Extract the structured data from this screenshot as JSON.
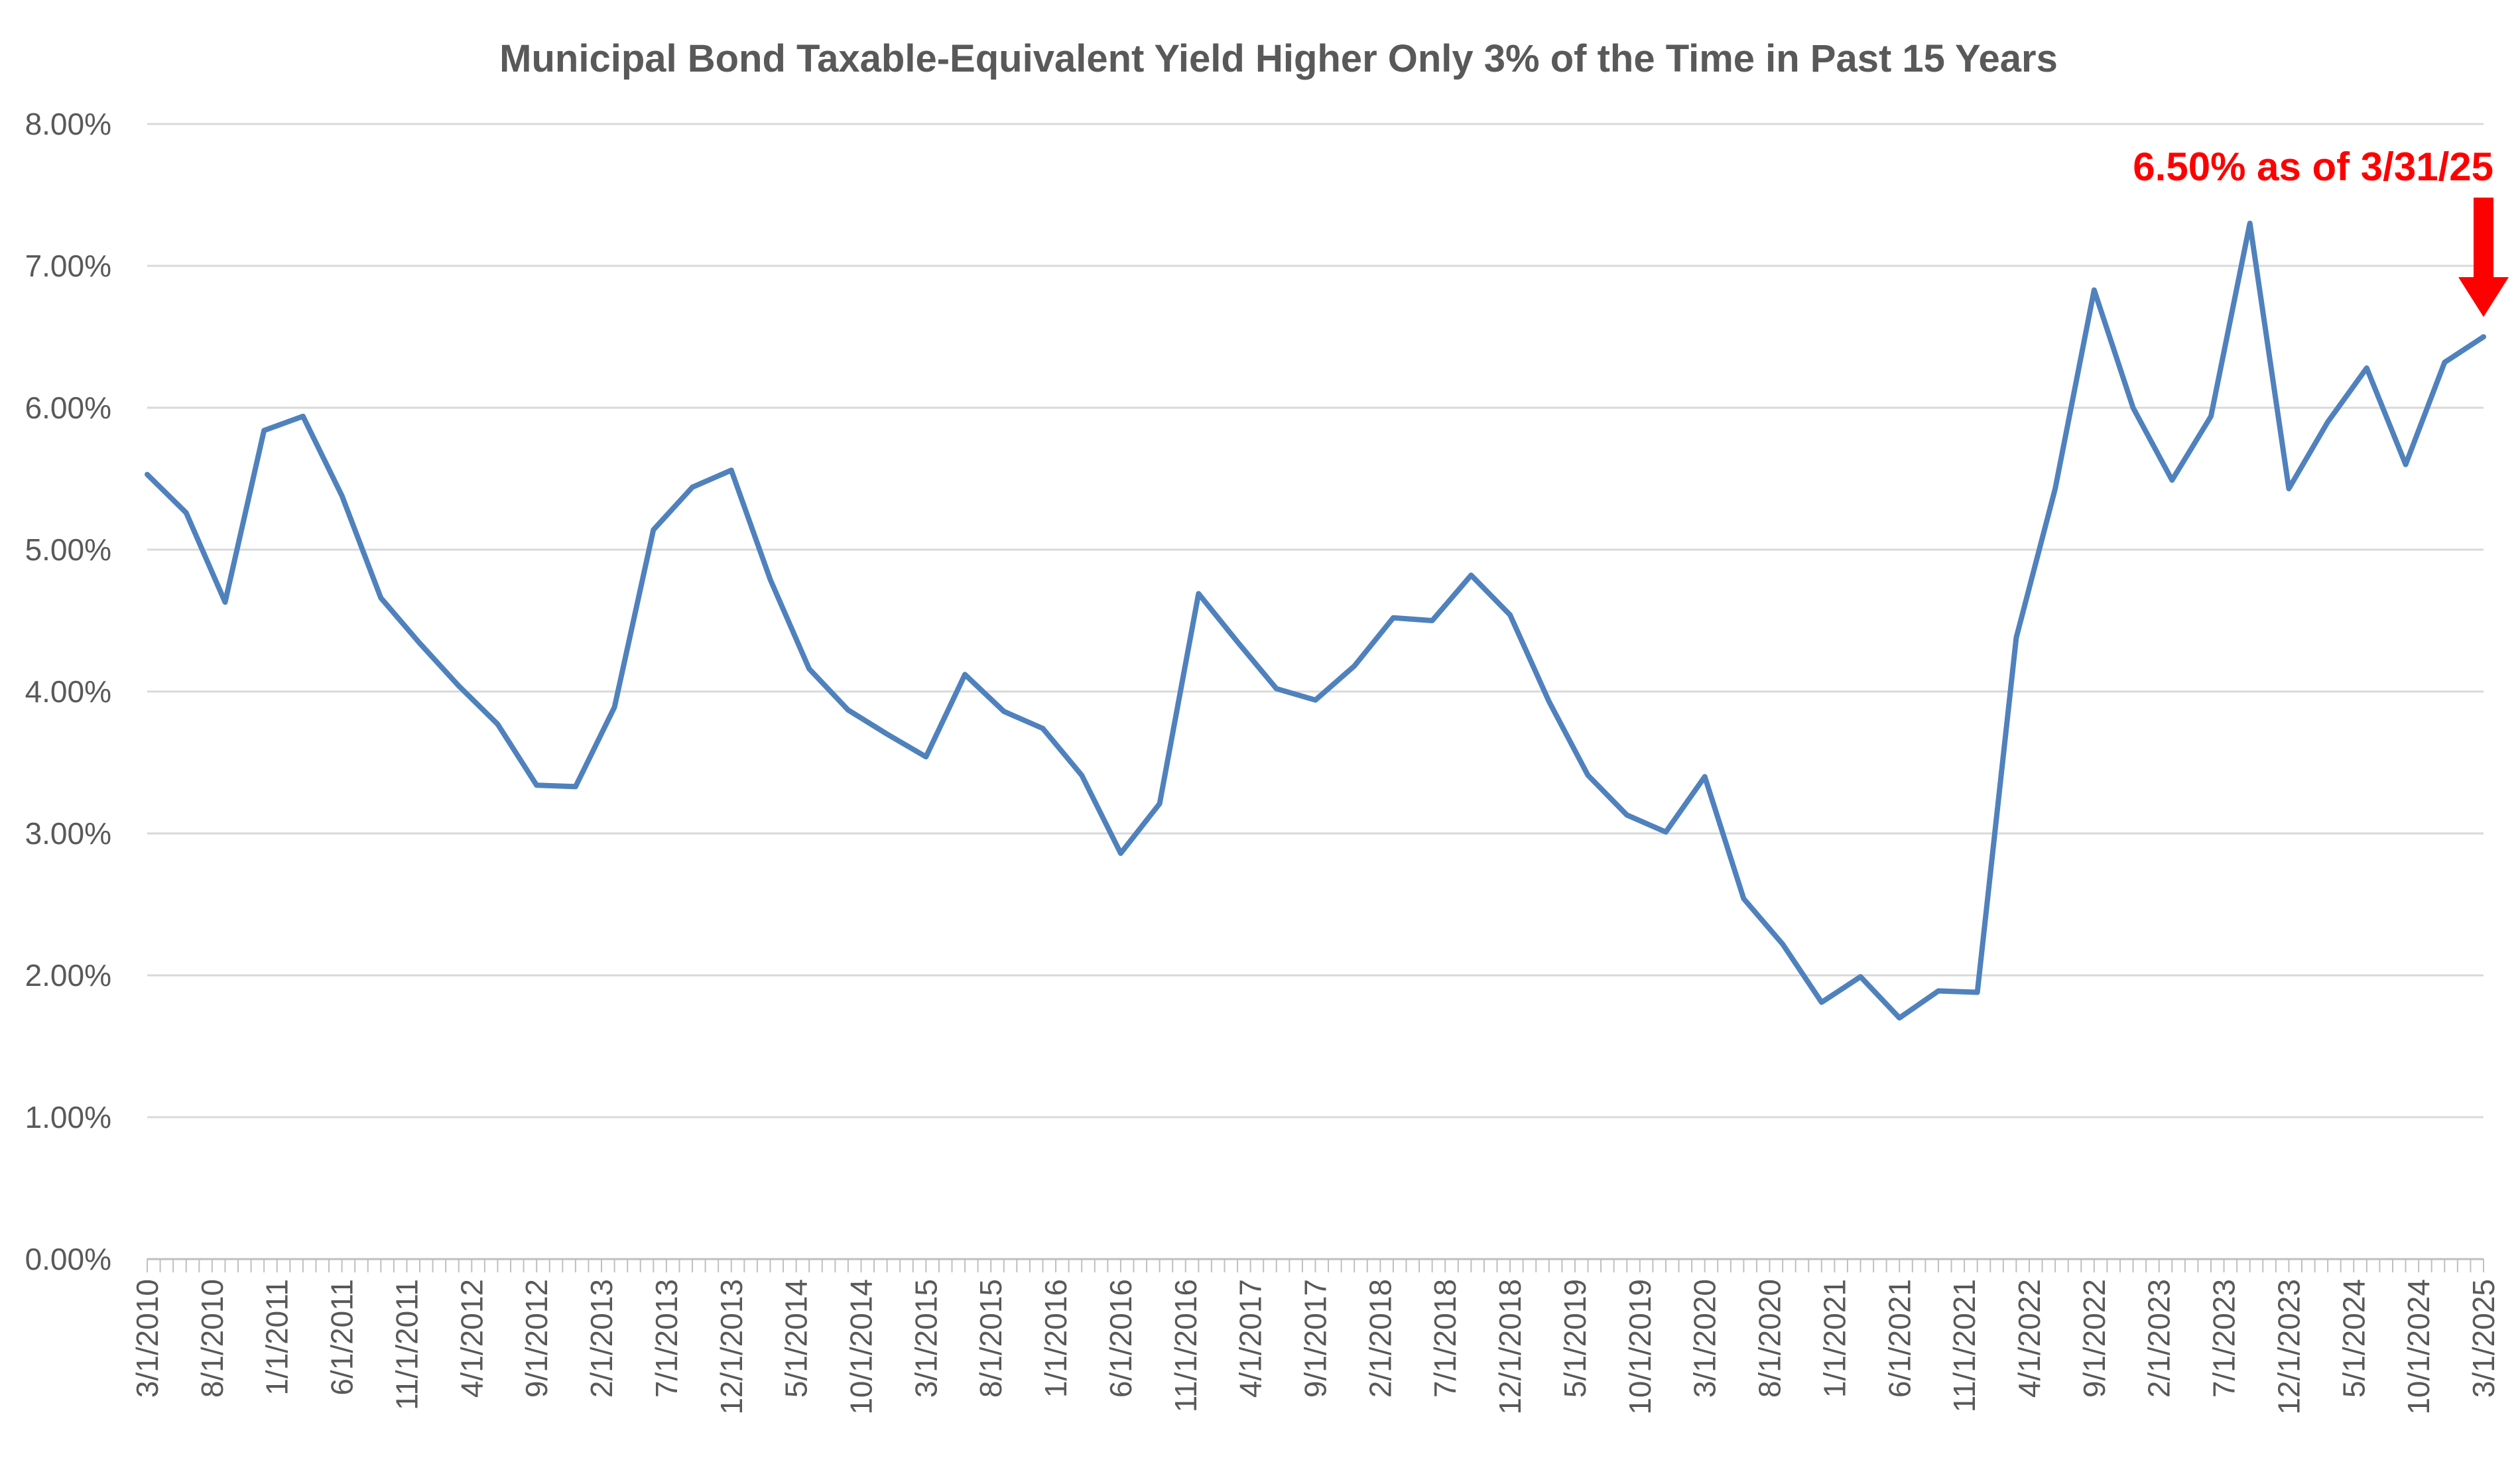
{
  "chart_data": {
    "type": "line",
    "title": "Municipal Bond Taxable-Equivalent Yield Higher Only 3% of the Time in Past 15 Years",
    "xlabel": "",
    "ylabel": "",
    "ylim": [
      0,
      8
    ],
    "yticks": [
      {
        "value": 0,
        "label": "0.00%"
      },
      {
        "value": 1,
        "label": "1.00%"
      },
      {
        "value": 2,
        "label": "2.00%"
      },
      {
        "value": 3,
        "label": "3.00%"
      },
      {
        "value": 4,
        "label": "4.00%"
      },
      {
        "value": 5,
        "label": "5.00%"
      },
      {
        "value": 6,
        "label": "6.00%"
      },
      {
        "value": 7,
        "label": "7.00%"
      },
      {
        "value": 8,
        "label": "8.00%"
      }
    ],
    "xtick_labels": [
      "3/1/2010",
      "8/1/2010",
      "1/1/2011",
      "6/1/2011",
      "11/1/2011",
      "4/1/2012",
      "9/1/2012",
      "2/1/2013",
      "7/1/2013",
      "12/1/2013",
      "5/1/2014",
      "10/1/2014",
      "3/1/2015",
      "8/1/2015",
      "1/1/2016",
      "6/1/2016",
      "11/1/2016",
      "4/1/2017",
      "9/1/2017",
      "2/1/2018",
      "7/1/2018",
      "12/1/2018",
      "5/1/2019",
      "10/1/2019",
      "3/1/2020",
      "8/1/2020",
      "1/1/2021",
      "6/1/2021",
      "11/1/2021",
      "4/1/2022",
      "9/1/2022",
      "2/1/2023",
      "7/1/2023",
      "12/1/2023",
      "5/1/2024",
      "10/1/2024",
      "3/1/2025"
    ],
    "x_range": [
      0,
      180
    ],
    "grid": true,
    "legend": "none",
    "series": [
      {
        "name": "Taxable-Equivalent Yield",
        "color": "#4f81bd",
        "x": [
          0,
          3,
          6,
          9,
          12,
          15,
          18,
          21,
          24,
          27,
          30,
          33,
          36,
          39,
          42,
          45,
          48,
          51,
          54,
          57,
          60,
          63,
          66,
          69,
          72,
          75,
          78,
          81,
          84,
          87,
          90,
          93,
          96,
          99,
          102,
          105,
          108,
          111,
          114,
          117,
          120,
          123,
          126,
          129,
          132,
          135,
          138,
          141,
          144,
          147,
          150,
          153,
          156,
          159,
          162,
          165,
          168,
          171,
          174,
          177,
          180
        ],
        "values": [
          5.53,
          5.26,
          4.63,
          5.84,
          5.94,
          5.38,
          4.66,
          4.34,
          4.04,
          3.77,
          3.34,
          3.33,
          3.89,
          5.14,
          5.44,
          5.56,
          4.79,
          4.16,
          3.87,
          3.7,
          3.54,
          4.12,
          3.86,
          3.74,
          3.41,
          2.86,
          3.21,
          4.69,
          4.35,
          4.02,
          3.94,
          4.18,
          4.52,
          4.5,
          4.82,
          4.54,
          3.93,
          3.41,
          3.13,
          3.01,
          3.4,
          2.54,
          2.22,
          1.81,
          1.99,
          1.7,
          1.89,
          1.88,
          4.38,
          5.43,
          6.83,
          6.0,
          5.49,
          5.94,
          7.3,
          5.43,
          5.9,
          6.28,
          5.6,
          6.32,
          6.5
        ]
      }
    ],
    "annotation": {
      "text": "6.50% as of 3/31/25",
      "color": "#ff0000",
      "target_x": 180,
      "target_value": 6.5
    }
  }
}
